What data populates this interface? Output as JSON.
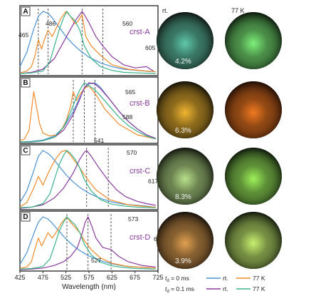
{
  "chart_data": {
    "type": "line",
    "xlabel": "Wavelength (nm)",
    "x_ticks": [
      425,
      475,
      525,
      575,
      625,
      675,
      725
    ],
    "xlim": [
      425,
      725
    ],
    "colors": {
      "rt_0": "#4a90d0",
      "k77_0": "#f08a2a",
      "rt_01": "#8a3a9e",
      "k77_01": "#3ab38a"
    },
    "panels": [
      {
        "letter": "A",
        "name": "crst-A",
        "qy": "4.2%",
        "peaks": [
          "465",
          "486",
          "560",
          "605"
        ],
        "series": [
          {
            "key": "rt_0",
            "x": [
              425,
              440,
              455,
              465,
              475,
              486,
              495,
              505,
              515,
              525,
              540,
              555,
              575,
              600,
              625,
              650,
              680,
              710
            ],
            "y": [
              0.12,
              0.35,
              0.72,
              0.92,
              1.0,
              0.97,
              0.9,
              0.8,
              0.7,
              0.6,
              0.48,
              0.38,
              0.27,
              0.18,
              0.12,
              0.08,
              0.06,
              0.04
            ]
          },
          {
            "key": "k77_0",
            "x": [
              425,
              440,
              450,
              458,
              465,
              472,
              478,
              486,
              495,
              505,
              515,
              525,
              535,
              545,
              552,
              560,
              568,
              580,
              600,
              625,
              660,
              700,
              720
            ],
            "y": [
              0.02,
              0.05,
              0.12,
              0.3,
              0.55,
              0.4,
              0.55,
              0.7,
              0.6,
              0.75,
              0.9,
              1.0,
              0.92,
              0.8,
              0.85,
              0.95,
              0.6,
              0.45,
              0.3,
              0.15,
              0.08,
              0.05,
              0.04
            ]
          },
          {
            "key": "rt_01",
            "x": [
              425,
              450,
              475,
              500,
              515,
              530,
              545,
              555,
              560,
              565,
              575,
              590,
              605,
              625,
              650,
              675,
              700,
              715
            ],
            "y": [
              0.01,
              0.03,
              0.08,
              0.25,
              0.45,
              0.65,
              0.85,
              0.95,
              1.0,
              0.95,
              0.82,
              0.6,
              0.45,
              0.28,
              0.15,
              0.1,
              0.12,
              0.05
            ]
          },
          {
            "key": "k77_01",
            "x": [
              425,
              450,
              475,
              490,
              500,
              510,
              520,
              527,
              535,
              545,
              555,
              565,
              580,
              600,
              625,
              650,
              680,
              720
            ],
            "y": [
              0.01,
              0.02,
              0.05,
              0.2,
              0.45,
              0.7,
              0.9,
              1.0,
              0.92,
              0.85,
              0.7,
              0.45,
              0.25,
              0.12,
              0.06,
              0.03,
              0.02,
              0.01
            ]
          }
        ]
      },
      {
        "letter": "B",
        "name": "crst-B",
        "qy": "6.3%",
        "peaks": [
          "541",
          "565",
          "588"
        ],
        "series": [
          {
            "key": "rt_0",
            "x": [
              425,
              450,
              475,
              500,
              520,
              540,
              555,
              565,
              575,
              588,
              600,
              620,
              640,
              660,
              680,
              700,
              720
            ],
            "y": [
              0.0,
              0.01,
              0.03,
              0.1,
              0.25,
              0.5,
              0.75,
              0.9,
              0.98,
              1.0,
              0.92,
              0.72,
              0.52,
              0.35,
              0.22,
              0.12,
              0.06
            ]
          },
          {
            "key": "k77_0",
            "x": [
              425,
              435,
              445,
              455,
              462,
              468,
              475,
              490,
              505,
              515,
              525,
              535,
              541,
              548,
              555,
              565,
              575,
              590,
              610,
              640,
              680,
              720
            ],
            "y": [
              0.02,
              0.05,
              0.2,
              0.85,
              0.55,
              0.3,
              0.15,
              0.1,
              0.12,
              0.2,
              0.35,
              0.6,
              0.85,
              0.7,
              0.8,
              0.9,
              0.95,
              0.8,
              0.55,
              0.3,
              0.12,
              0.05
            ]
          },
          {
            "key": "rt_01",
            "x": [
              425,
              450,
              475,
              500,
              520,
              540,
              555,
              565,
              575,
              588,
              600,
              620,
              640,
              660,
              680,
              700,
              720
            ],
            "y": [
              0.0,
              0.0,
              0.02,
              0.08,
              0.2,
              0.45,
              0.72,
              0.92,
              1.0,
              0.98,
              0.9,
              0.72,
              0.52,
              0.35,
              0.22,
              0.12,
              0.06
            ]
          },
          {
            "key": "k77_01",
            "x": [
              425,
              450,
              475,
              500,
              520,
              535,
              545,
              555,
              565,
              575,
              588,
              600,
              620,
              640,
              660,
              680,
              700,
              720
            ],
            "y": [
              0.0,
              0.0,
              0.02,
              0.08,
              0.25,
              0.5,
              0.7,
              0.88,
              1.0,
              0.95,
              0.88,
              0.78,
              0.6,
              0.42,
              0.28,
              0.18,
              0.1,
              0.05
            ]
          }
        ]
      },
      {
        "letter": "C",
        "name": "crst-C",
        "qy": "8.3%",
        "peaks": [
          "570",
          "617"
        ],
        "series": [
          {
            "key": "rt_0",
            "x": [
              425,
              440,
              455,
              465,
              475,
              486,
              495,
              505,
              515,
              525,
              540,
              555,
              575,
              600,
              625,
              650,
              680,
              710
            ],
            "y": [
              0.1,
              0.3,
              0.65,
              0.9,
              1.0,
              0.95,
              0.88,
              0.78,
              0.68,
              0.58,
              0.46,
              0.36,
              0.26,
              0.17,
              0.11,
              0.07,
              0.05,
              0.03
            ]
          },
          {
            "key": "k77_0",
            "x": [
              425,
              440,
              455,
              465,
              475,
              486,
              495,
              505,
              515,
              525,
              535,
              541,
              548,
              555,
              570,
              590,
              620,
              660,
              700,
              720
            ],
            "y": [
              0.02,
              0.1,
              0.35,
              0.55,
              0.4,
              0.6,
              0.75,
              0.88,
              0.98,
              1.0,
              0.92,
              0.85,
              0.78,
              0.7,
              0.52,
              0.32,
              0.15,
              0.06,
              0.03,
              0.02
            ]
          },
          {
            "key": "rt_01",
            "x": [
              425,
              450,
              475,
              500,
              520,
              540,
              555,
              565,
              570,
              580,
              595,
              617,
              635,
              655,
              680,
              700,
              720
            ],
            "y": [
              0.0,
              0.02,
              0.06,
              0.18,
              0.35,
              0.6,
              0.85,
              0.97,
              1.0,
              0.9,
              0.72,
              0.48,
              0.32,
              0.2,
              0.12,
              0.08,
              0.05
            ]
          },
          {
            "key": "k77_01",
            "x": [
              425,
              450,
              475,
              490,
              500,
              510,
              520,
              527,
              535,
              545,
              555,
              565,
              580,
              600,
              625,
              650,
              680,
              720
            ],
            "y": [
              0.01,
              0.02,
              0.08,
              0.25,
              0.5,
              0.75,
              0.92,
              1.0,
              0.95,
              0.85,
              0.7,
              0.5,
              0.3,
              0.15,
              0.07,
              0.04,
              0.02,
              0.01
            ]
          }
        ]
      },
      {
        "letter": "D",
        "name": "crst-D",
        "qy": "3.9%",
        "peaks": [
          "527",
          "573",
          "623"
        ],
        "series": [
          {
            "key": "rt_0",
            "x": [
              425,
              440,
              455,
              465,
              475,
              486,
              495,
              505,
              515,
              525,
              540,
              555,
              575,
              600,
              625,
              650,
              680,
              710
            ],
            "y": [
              0.1,
              0.32,
              0.68,
              0.9,
              1.0,
              0.96,
              0.88,
              0.78,
              0.68,
              0.58,
              0.46,
              0.36,
              0.26,
              0.17,
              0.11,
              0.07,
              0.05,
              0.03
            ]
          },
          {
            "key": "k77_0",
            "x": [
              425,
              440,
              450,
              458,
              465,
              472,
              478,
              486,
              495,
              505,
              515,
              522,
              527,
              535,
              545,
              555,
              565,
              580,
              600,
              625,
              660,
              700,
              720
            ],
            "y": [
              0.02,
              0.05,
              0.15,
              0.4,
              0.6,
              0.45,
              0.55,
              0.7,
              0.6,
              0.72,
              0.88,
              0.95,
              1.0,
              0.9,
              0.8,
              0.7,
              0.55,
              0.38,
              0.22,
              0.12,
              0.06,
              0.04,
              0.03
            ]
          },
          {
            "key": "rt_01",
            "x": [
              425,
              450,
              475,
              500,
              520,
              535,
              550,
              560,
              567,
              573,
              580,
              590,
              605,
              623,
              640,
              660,
              690,
              720
            ],
            "y": [
              0.0,
              0.01,
              0.03,
              0.08,
              0.15,
              0.25,
              0.42,
              0.68,
              0.9,
              1.0,
              0.85,
              0.6,
              0.42,
              0.38,
              0.25,
              0.15,
              0.08,
              0.05
            ]
          },
          {
            "key": "k77_01",
            "x": [
              425,
              450,
              475,
              490,
              500,
              510,
              520,
              527,
              535,
              545,
              555,
              565,
              580,
              600,
              625,
              650,
              680,
              720
            ],
            "y": [
              0.01,
              0.02,
              0.06,
              0.2,
              0.45,
              0.72,
              0.9,
              1.0,
              0.93,
              0.85,
              0.7,
              0.48,
              0.28,
              0.14,
              0.07,
              0.04,
              0.02,
              0.01
            ]
          }
        ]
      }
    ],
    "legend": {
      "row1_label": "t",
      "row1_sub": "d",
      "row1_value": " = 0 ms",
      "row2_label": "t",
      "row2_sub": "d",
      "row2_value": " = 0.1 ms",
      "rt": "rt.",
      "k77": "77 K"
    }
  },
  "photos": {
    "header_rt": "rt.",
    "header_77k": "77 K",
    "rows": [
      {
        "rt_bg": "#0d120f",
        "rt_glow": "#5ec7a8",
        "k77_bg": "#0a140a",
        "k77_glow": "#7ef07a"
      },
      {
        "rt_bg": "#100d05",
        "rt_glow": "#f0b530",
        "k77_bg": "#1a0a05",
        "k77_glow": "#f07a20"
      },
      {
        "rt_bg": "#0e120b",
        "rt_glow": "#b8e08a",
        "k77_bg": "#0b140a",
        "k77_glow": "#9ef05a"
      },
      {
        "rt_bg": "#120d08",
        "rt_glow": "#e0a050",
        "k77_bg": "#0e140a",
        "k77_glow": "#c8f070"
      }
    ]
  }
}
